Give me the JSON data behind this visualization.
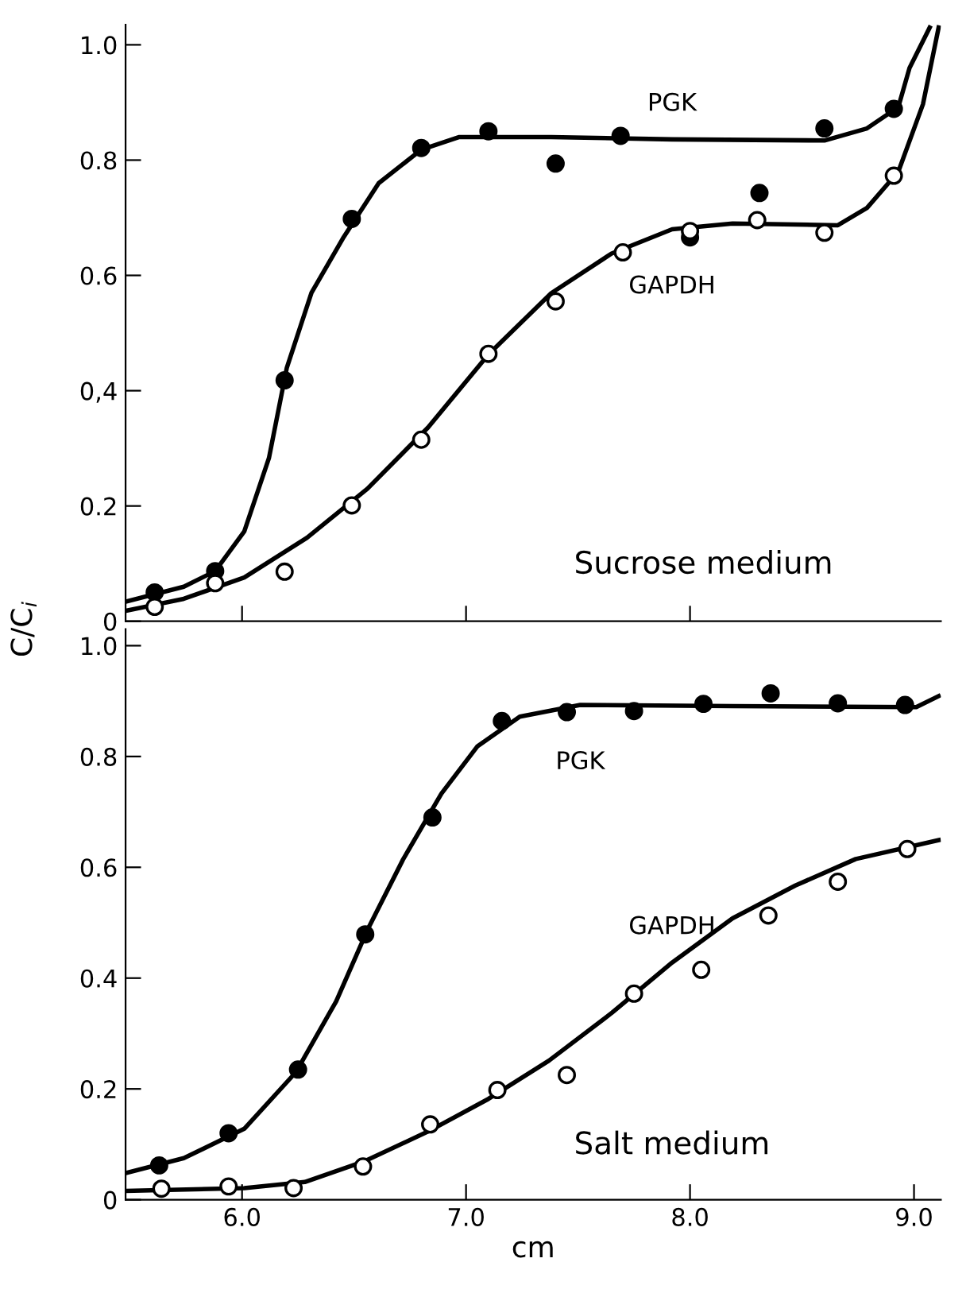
{
  "chart_data": [
    {
      "type": "line",
      "title": "Sucrose medium",
      "ylabel": "C/C$_{i}$",
      "xlim": [
        5.48,
        9.12
      ],
      "ylim": [
        0,
        1.035
      ],
      "xticks": [
        {
          "value": 6,
          "label": null
        },
        {
          "value": 7,
          "label": null
        },
        {
          "value": 8,
          "label": null
        }
      ],
      "yticks": [
        {
          "value": 0,
          "label": "0"
        },
        {
          "value": 0.2,
          "label": "0.2"
        },
        {
          "value": 0.4,
          "label": "0,4"
        },
        {
          "value": 0.6,
          "label": "0.6"
        },
        {
          "value": 0.8,
          "label": "0.8"
        },
        {
          "value": 1.0,
          "label": "1.0"
        }
      ],
      "tick_labels": "y",
      "marker": "circle",
      "grid": false,
      "legend": false,
      "series": [
        {
          "type": "scatter",
          "color": "#000000",
          "x": [
            5.61,
            5.88,
            6.19,
            6.49,
            6.8,
            7.1,
            7.4,
            7.69,
            8.0,
            8.31,
            8.6,
            8.91
          ],
          "values": [
            0.05,
            0.087,
            0.418,
            0.698,
            0.821,
            0.85,
            0.794,
            0.842,
            0.666,
            0.743,
            0.855,
            0.889
          ]
        },
        {
          "type": "scatter",
          "color": "#ffffff",
          "x": [
            5.61,
            5.88,
            6.19,
            6.49,
            6.8,
            7.1,
            7.4,
            7.7,
            8.0,
            8.3,
            8.6,
            8.91
          ],
          "values": [
            0.025,
            0.066,
            0.086,
            0.201,
            0.315,
            0.464,
            0.555,
            0.64,
            0.677,
            0.696,
            0.674,
            0.773
          ]
        },
        {
          "name": "PGK",
          "color": "#000000",
          "line_style": "solid",
          "marker": "none",
          "x": [
            5.48,
            5.74,
            5.88,
            6.01,
            6.12,
            6.2,
            6.31,
            6.45,
            6.61,
            6.8,
            6.97,
            7.38,
            7.92,
            8.6,
            8.79,
            8.93,
            8.98,
            9.07
          ],
          "values": [
            0.034,
            0.06,
            0.087,
            0.156,
            0.283,
            0.44,
            0.57,
            0.664,
            0.76,
            0.818,
            0.84,
            0.84,
            0.836,
            0.834,
            0.855,
            0.892,
            0.96,
            1.03
          ]
        },
        {
          "name": "GAPDH",
          "color": "#000000",
          "line_style": "solid",
          "marker": "none",
          "x": [
            5.48,
            5.74,
            6.01,
            6.29,
            6.56,
            6.83,
            7.1,
            7.38,
            7.65,
            7.92,
            8.19,
            8.66,
            8.79,
            8.93,
            9.04,
            9.11
          ],
          "values": [
            0.018,
            0.039,
            0.076,
            0.145,
            0.23,
            0.336,
            0.463,
            0.569,
            0.638,
            0.68,
            0.69,
            0.687,
            0.717,
            0.78,
            0.897,
            1.03
          ]
        }
      ]
    },
    {
      "type": "line",
      "title": "Salt medium",
      "xlabel": "cm",
      "xlim": [
        5.48,
        9.12
      ],
      "ylim": [
        0,
        1.03
      ],
      "xticks": [
        {
          "value": 6,
          "label": "6.0"
        },
        {
          "value": 7,
          "label": "7.0"
        },
        {
          "value": 8,
          "label": "8.0"
        },
        {
          "value": 9,
          "label": "9.0"
        }
      ],
      "yticks": [
        {
          "value": 0,
          "label": "0"
        },
        {
          "value": 0.2,
          "label": "0.2"
        },
        {
          "value": 0.4,
          "label": "0.4"
        },
        {
          "value": 0.6,
          "label": "0.6"
        },
        {
          "value": 0.8,
          "label": "0.8"
        },
        {
          "value": 1.0,
          "label": "1.0"
        }
      ],
      "marker": "circle",
      "grid": false,
      "legend": false,
      "series": [
        {
          "type": "scatter",
          "color": "#000000",
          "x": [
            5.63,
            5.94,
            6.25,
            6.55,
            6.85,
            7.16,
            7.45,
            7.75,
            8.06,
            8.36,
            8.66,
            8.96
          ],
          "values": [
            0.062,
            0.12,
            0.235,
            0.479,
            0.69,
            0.864,
            0.88,
            0.882,
            0.895,
            0.914,
            0.896,
            0.893
          ]
        },
        {
          "type": "scatter",
          "color": "#ffffff",
          "x": [
            5.64,
            5.94,
            6.23,
            6.54,
            6.84,
            7.14,
            7.45,
            7.75,
            8.05,
            8.35,
            8.66,
            8.97
          ],
          "values": [
            0.02,
            0.024,
            0.021,
            0.06,
            0.136,
            0.198,
            0.225,
            0.372,
            0.415,
            0.513,
            0.574,
            0.633
          ]
        },
        {
          "name": "PGK",
          "color": "#000000",
          "line_style": "solid",
          "marker": "none",
          "x": [
            5.48,
            5.74,
            6.01,
            6.24,
            6.42,
            6.56,
            6.72,
            6.89,
            7.05,
            7.24,
            7.51,
            8.19,
            9.01,
            9.11
          ],
          "values": [
            0.048,
            0.075,
            0.128,
            0.23,
            0.358,
            0.487,
            0.615,
            0.733,
            0.818,
            0.872,
            0.893,
            0.891,
            0.889,
            0.909
          ]
        },
        {
          "name": "GAPDH",
          "color": "#000000",
          "line_style": "solid",
          "marker": "none",
          "x": [
            5.48,
            6.01,
            6.28,
            6.55,
            6.83,
            7.1,
            7.37,
            7.65,
            7.92,
            8.19,
            8.47,
            8.74,
            9.11
          ],
          "values": [
            0.016,
            0.021,
            0.032,
            0.07,
            0.123,
            0.182,
            0.251,
            0.337,
            0.428,
            0.508,
            0.567,
            0.615,
            0.649
          ]
        }
      ]
    }
  ]
}
